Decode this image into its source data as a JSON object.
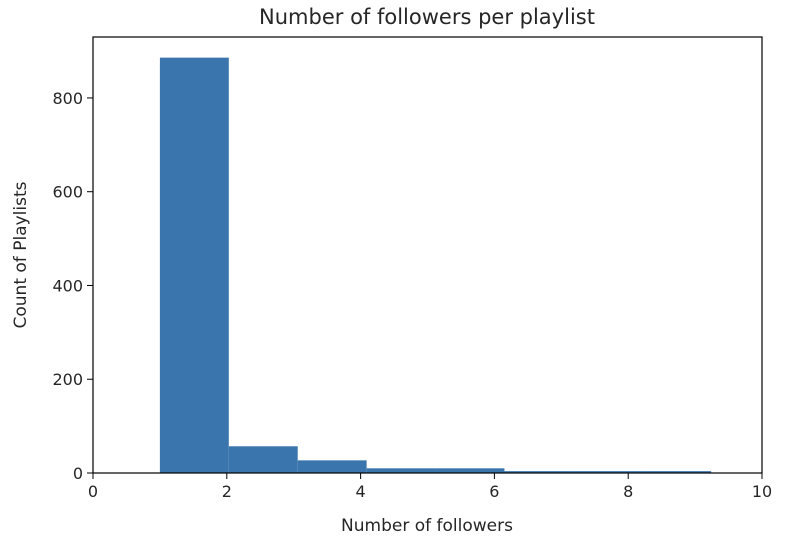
{
  "chart_data": {
    "type": "bar",
    "subtype": "histogram",
    "title": "Number of followers per playlist",
    "xlabel": "Number of followers",
    "ylabel": "Count of Playlists",
    "xlim": [
      0,
      10
    ],
    "ylim": [
      0,
      930
    ],
    "xticks": [
      0,
      2,
      4,
      6,
      8,
      10
    ],
    "yticks": [
      0,
      200,
      400,
      600,
      800
    ],
    "grid": false,
    "legend": "none",
    "bar_color": "#3a75ad",
    "bins": [
      {
        "x0": 1.0,
        "x1": 2.03,
        "count": 886
      },
      {
        "x0": 2.03,
        "x1": 3.06,
        "count": 57
      },
      {
        "x0": 3.06,
        "x1": 4.09,
        "count": 27
      },
      {
        "x0": 4.09,
        "x1": 5.12,
        "count": 10
      },
      {
        "x0": 5.12,
        "x1": 6.15,
        "count": 10
      },
      {
        "x0": 6.15,
        "x1": 7.18,
        "count": 4
      },
      {
        "x0": 7.18,
        "x1": 8.21,
        "count": 4
      },
      {
        "x0": 8.21,
        "x1": 9.24,
        "count": 4
      }
    ]
  }
}
